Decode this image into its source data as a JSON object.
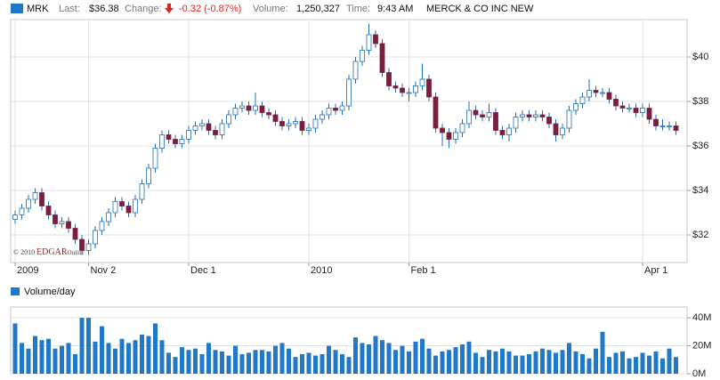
{
  "header": {
    "symbol": "MRK",
    "last_label": "Last:",
    "last": "$36.38",
    "change_label": "Change:",
    "change": "-0.32 (-0.87%)",
    "volume_label": "Volume:",
    "volume": "1,250,327",
    "time_label": "Time:",
    "time": "9:43 AM",
    "company": "MERCK & CO INC NEW"
  },
  "watermark": {
    "year": "© 2010 ",
    "brand": "EDGAR",
    "suffix": "Online"
  },
  "chart_data": [
    {
      "type": "candlestick",
      "categories": [
        "2009",
        null,
        null,
        null,
        null,
        null,
        null,
        null,
        null,
        null,
        null,
        "Nov 2",
        null,
        null,
        null,
        null,
        null,
        null,
        null,
        null,
        null,
        null,
        null,
        null,
        null,
        null,
        "Dec 1",
        null,
        null,
        null,
        null,
        null,
        null,
        null,
        null,
        null,
        null,
        null,
        null,
        null,
        null,
        null,
        null,
        null,
        "2010",
        null,
        null,
        null,
        null,
        null,
        null,
        null,
        null,
        null,
        null,
        null,
        null,
        null,
        null,
        "Feb 1",
        null,
        null,
        null,
        null,
        null,
        null,
        null,
        null,
        null,
        null,
        null,
        null,
        null,
        null,
        null,
        null,
        null,
        null,
        null,
        null,
        null,
        null,
        null,
        null,
        null,
        null,
        null,
        null,
        null,
        null,
        null,
        null,
        null,
        null,
        "Apr 1",
        null,
        null,
        null,
        null,
        null
      ],
      "open": [
        32.7,
        32.9,
        33.2,
        33.6,
        33.9,
        33.3,
        32.9,
        32.5,
        32.6,
        32.3,
        31.8,
        31.3,
        31.6,
        32.2,
        32.6,
        33.0,
        33.5,
        33.3,
        33.0,
        33.6,
        34.3,
        35.0,
        35.9,
        36.5,
        36.3,
        36.1,
        36.3,
        36.7,
        36.9,
        37.0,
        36.7,
        36.5,
        37.0,
        37.4,
        37.7,
        37.8,
        37.6,
        37.8,
        37.5,
        37.4,
        37.1,
        36.9,
        37.0,
        37.1,
        36.7,
        36.8,
        37.2,
        37.4,
        37.7,
        37.6,
        37.8,
        39.0,
        39.8,
        40.3,
        41.0,
        40.6,
        39.3,
        38.7,
        38.6,
        38.4,
        38.4,
        38.7,
        39.0,
        38.2,
        36.8,
        36.6,
        36.3,
        36.6,
        37.0,
        37.6,
        37.4,
        37.3,
        37.5,
        36.7,
        36.5,
        36.8,
        37.3,
        37.4,
        37.3,
        37.4,
        37.3,
        37.0,
        36.5,
        36.8,
        37.6,
        37.9,
        38.2,
        38.5,
        38.4,
        38.4,
        38.1,
        37.8,
        37.7,
        37.7,
        37.5,
        37.7,
        37.2,
        36.9,
        36.9,
        36.9
      ],
      "high": [
        33.1,
        33.4,
        33.8,
        34.1,
        34.1,
        33.5,
        33.1,
        32.8,
        32.8,
        32.5,
        32.0,
        31.8,
        32.4,
        32.8,
        33.2,
        33.7,
        33.7,
        33.5,
        33.8,
        34.5,
        35.2,
        36.1,
        36.7,
        36.7,
        36.5,
        36.5,
        36.9,
        37.1,
        37.2,
        37.2,
        36.9,
        37.2,
        37.6,
        37.9,
        38.0,
        38.0,
        38.4,
        38.0,
        37.7,
        37.6,
        37.3,
        37.2,
        37.3,
        37.3,
        37.0,
        37.4,
        37.6,
        37.9,
        37.9,
        38.0,
        39.2,
        40.0,
        40.5,
        41.5,
        41.2,
        40.8,
        39.5,
        38.9,
        38.8,
        38.6,
        38.9,
        39.7,
        39.2,
        38.4,
        37.0,
        36.8,
        36.8,
        37.2,
        38.0,
        37.8,
        37.6,
        37.9,
        37.7,
        36.9,
        37.0,
        37.5,
        37.6,
        37.6,
        37.6,
        37.6,
        37.5,
        37.2,
        37.0,
        37.8,
        38.1,
        38.4,
        39.0,
        38.7,
        38.6,
        38.6,
        38.3,
        38.0,
        37.9,
        37.9,
        37.9,
        37.9,
        37.4,
        37.2,
        37.1,
        37.1
      ],
      "low": [
        32.5,
        32.7,
        33.0,
        33.4,
        33.1,
        32.7,
        32.3,
        32.3,
        32.1,
        31.6,
        31.1,
        31.1,
        31.4,
        32.0,
        32.4,
        32.8,
        33.1,
        32.8,
        32.8,
        33.4,
        34.1,
        34.8,
        35.7,
        36.1,
        35.9,
        35.9,
        36.1,
        36.5,
        36.7,
        36.5,
        36.3,
        36.3,
        36.8,
        37.2,
        37.5,
        37.4,
        37.4,
        37.3,
        37.2,
        36.9,
        36.7,
        36.7,
        36.8,
        36.5,
        36.5,
        36.6,
        37.0,
        37.2,
        37.4,
        37.4,
        37.6,
        38.8,
        39.6,
        40.1,
        40.4,
        39.1,
        38.5,
        38.4,
        38.2,
        38.0,
        38.2,
        38.5,
        38.0,
        36.6,
        36.0,
        35.9,
        36.1,
        36.4,
        36.8,
        37.2,
        37.1,
        37.1,
        36.5,
        36.3,
        36.2,
        36.6,
        37.1,
        37.1,
        37.1,
        37.1,
        36.8,
        36.2,
        36.3,
        36.6,
        37.4,
        37.7,
        38.0,
        38.2,
        38.2,
        37.9,
        37.6,
        37.5,
        37.5,
        37.3,
        37.3,
        37.0,
        36.7,
        36.7,
        36.7,
        36.5
      ],
      "close": [
        32.9,
        33.2,
        33.6,
        33.9,
        33.3,
        32.9,
        32.5,
        32.6,
        32.3,
        31.8,
        31.3,
        31.6,
        32.2,
        32.6,
        33.0,
        33.5,
        33.3,
        33.0,
        33.6,
        34.3,
        35.0,
        35.9,
        36.5,
        36.3,
        36.1,
        36.3,
        36.7,
        36.9,
        37.0,
        36.7,
        36.5,
        37.0,
        37.4,
        37.7,
        37.8,
        37.6,
        37.8,
        37.5,
        37.4,
        37.1,
        36.9,
        37.0,
        37.1,
        36.7,
        36.8,
        37.2,
        37.4,
        37.7,
        37.6,
        37.8,
        39.0,
        39.8,
        40.3,
        41.0,
        40.6,
        39.3,
        38.7,
        38.6,
        38.4,
        38.4,
        38.7,
        39.0,
        38.2,
        36.8,
        36.6,
        36.3,
        36.6,
        37.0,
        37.6,
        37.4,
        37.3,
        37.5,
        36.7,
        36.5,
        36.8,
        37.3,
        37.4,
        37.3,
        37.4,
        37.3,
        37.0,
        36.5,
        36.8,
        37.6,
        37.9,
        38.2,
        38.5,
        38.4,
        38.4,
        38.1,
        37.8,
        37.7,
        37.7,
        37.5,
        37.7,
        37.2,
        36.9,
        36.9,
        36.9,
        36.7
      ],
      "up_color": "#ffffff",
      "down_color": "#7b1e3e",
      "wick_color": "#1f6fb8",
      "ylim": [
        30.76,
        41.68
      ],
      "yticks": [
        {
          "value": 32,
          "label": "$32"
        },
        {
          "value": 34,
          "label": "$34"
        },
        {
          "value": 36,
          "label": "$36"
        },
        {
          "value": 38,
          "label": "$38"
        },
        {
          "value": 40,
          "label": "$40"
        }
      ],
      "grid": true
    },
    {
      "type": "bar",
      "title": "Volume/day",
      "values": [
        36,
        22,
        18,
        27,
        24,
        25,
        18,
        20,
        22,
        14,
        40,
        40,
        23,
        34,
        22,
        18,
        25,
        22,
        24,
        28,
        27,
        36,
        24,
        15,
        12,
        19,
        17,
        18,
        14,
        22,
        17,
        16,
        13,
        20,
        14,
        15,
        17,
        17,
        16,
        20,
        22,
        18,
        12,
        14,
        15,
        13,
        14,
        20,
        17,
        14,
        12,
        26,
        22,
        21,
        27,
        24,
        22,
        17,
        20,
        16,
        23,
        25,
        18,
        13,
        16,
        17,
        19,
        21,
        23,
        15,
        12,
        17,
        16,
        18,
        16,
        13,
        13,
        14,
        16,
        18,
        17,
        15,
        17,
        22,
        16,
        14,
        11,
        18,
        30,
        12,
        15,
        16,
        11,
        12,
        15,
        13,
        16,
        11,
        18,
        12
      ],
      "color": "#1f78c8",
      "ylim": [
        0,
        47.7
      ],
      "yticks": [
        {
          "value": 0,
          "label": "0M"
        },
        {
          "value": 20,
          "label": "20M"
        },
        {
          "value": 40,
          "label": "40M"
        }
      ],
      "grid": true
    }
  ]
}
